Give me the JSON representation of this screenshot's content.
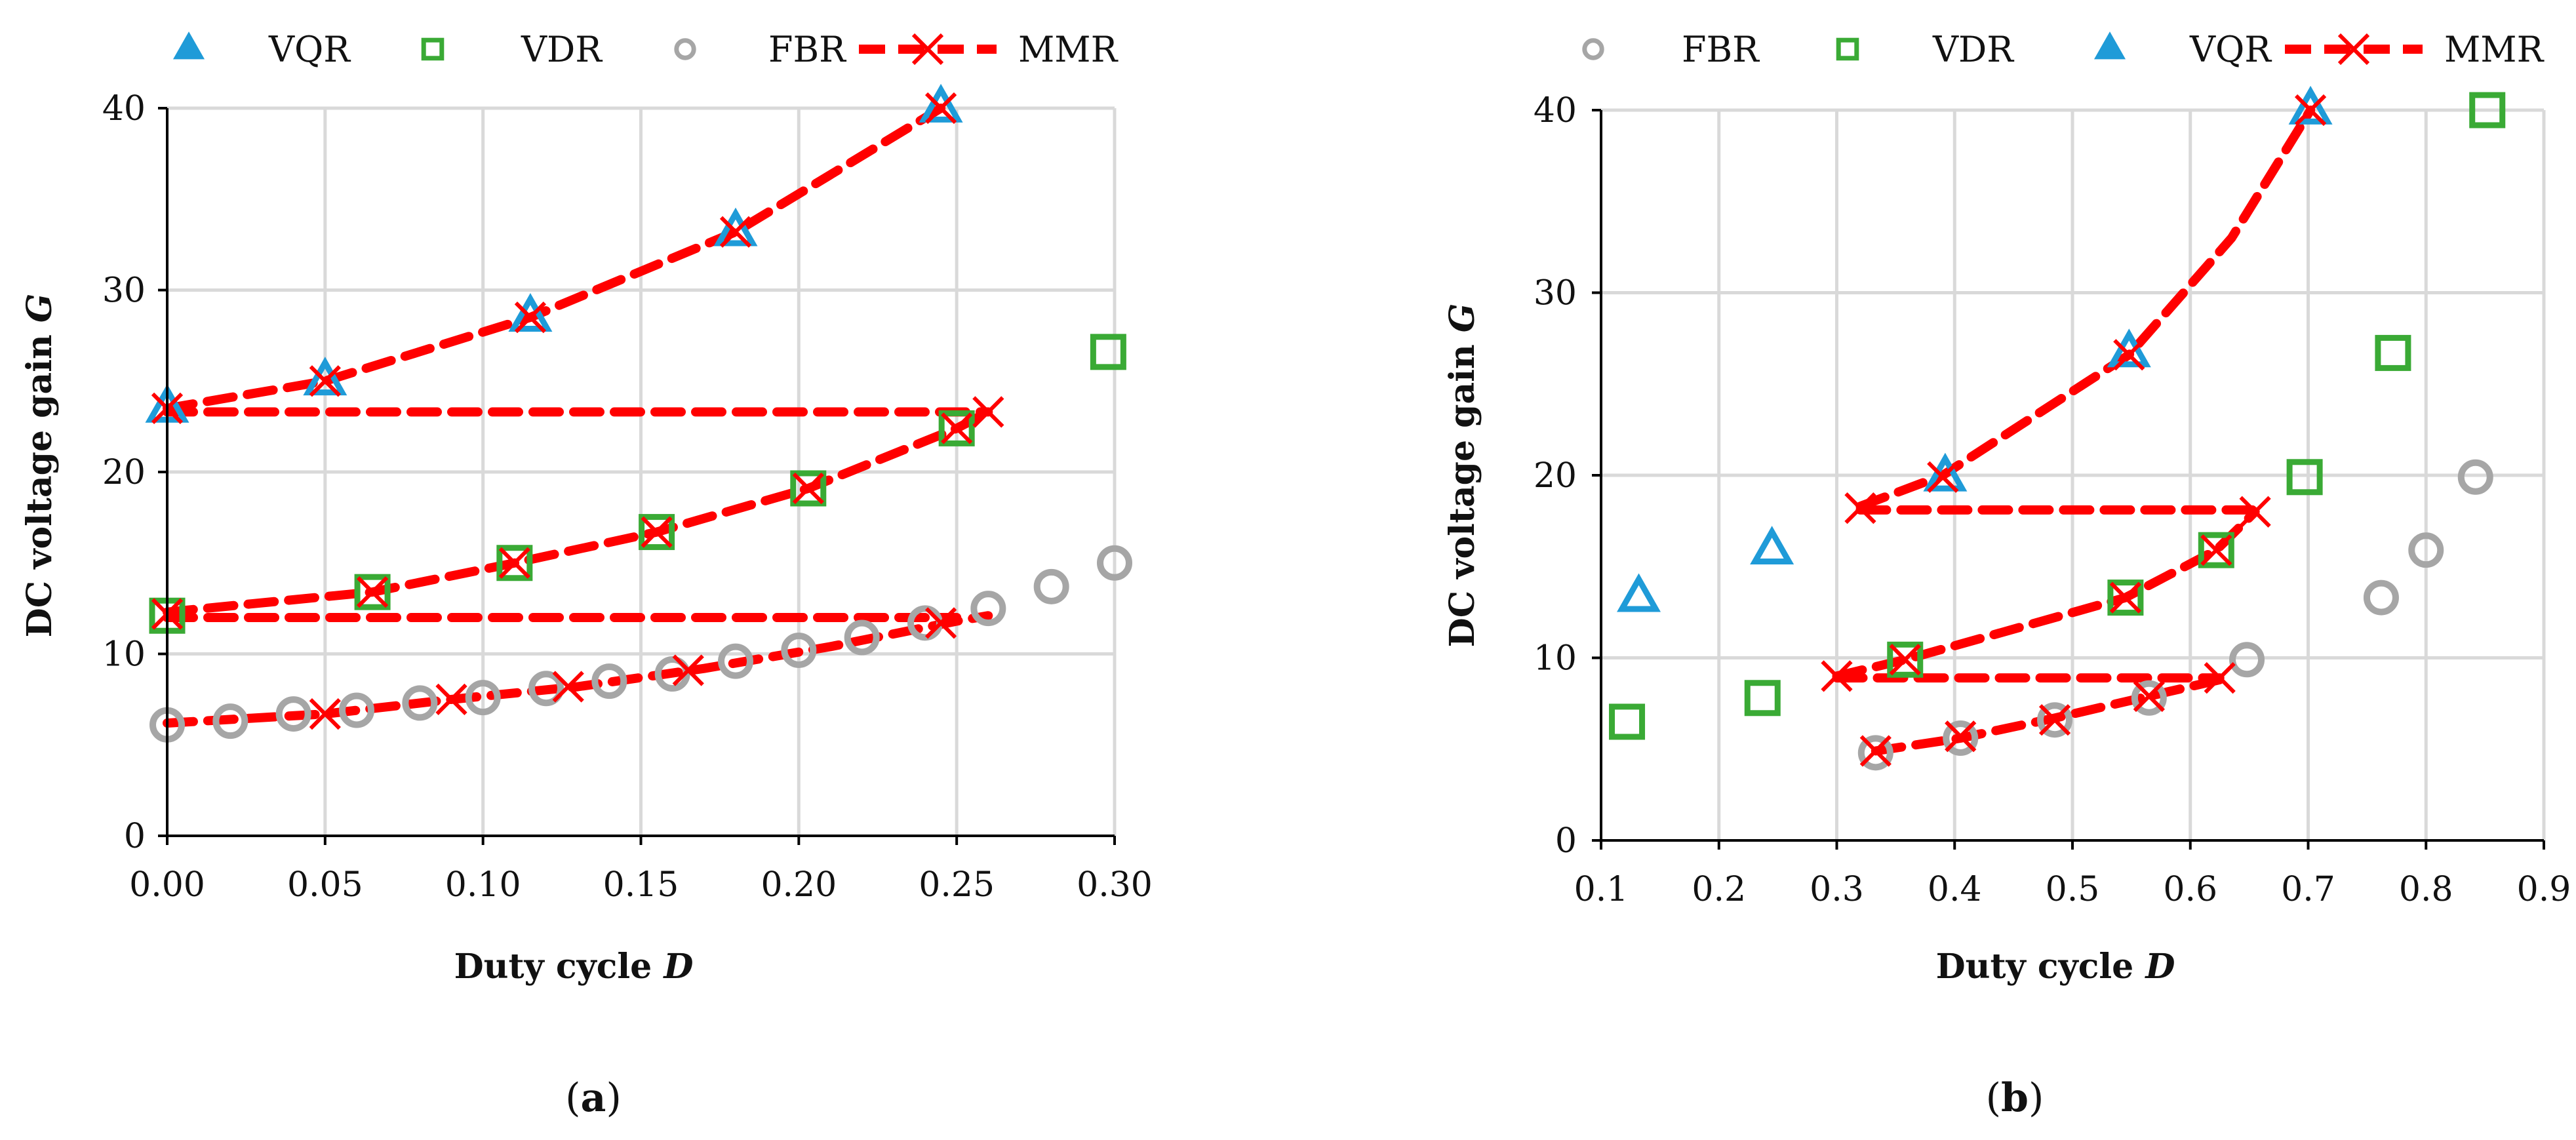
{
  "colors": {
    "VQR": "#1f9bd8",
    "VDR": "#3aaa35",
    "FBR": "#a6a6a6",
    "MMR": "#ff0000",
    "grid": "#d9d9d9",
    "axis": "#000000"
  },
  "chart_data": [
    {
      "type": "scatter",
      "panel_label": "(a)",
      "label_parts": {
        "open": "(",
        "letter": "a",
        "close": ")"
      },
      "xlabel": "Duty cycle",
      "xlabel_symbol": "D",
      "ylabel": "DC voltage gain",
      "ylabel_symbol": "G",
      "xlim": [
        0,
        0.3
      ],
      "ylim": [
        0,
        40
      ],
      "xticks": [
        0,
        0.05,
        0.1,
        0.15,
        0.2,
        0.25,
        0.3
      ],
      "xtick_labels": [
        "0.00",
        "0.05",
        "0.10",
        "0.15",
        "0.20",
        "0.25",
        "0.30"
      ],
      "yticks": [
        0,
        10,
        20,
        30,
        40
      ],
      "ytick_labels": [
        "0",
        "10",
        "20",
        "30",
        "40"
      ],
      "grid": true,
      "legend": [
        "VQR",
        "VDR",
        "FBR",
        "MMR"
      ],
      "legend_placement": "top",
      "series": [
        {
          "name": "VQR",
          "marker": "triangle",
          "x": [
            0.0,
            0.05,
            0.115,
            0.18,
            0.245
          ],
          "y": [
            23.5,
            25.0,
            28.5,
            33.2,
            40.0
          ]
        },
        {
          "name": "VDR",
          "marker": "square",
          "x": [
            0.0,
            0.065,
            0.11,
            0.155,
            0.203,
            0.25,
            0.298
          ],
          "y": [
            12.1,
            13.4,
            15.0,
            16.7,
            19.1,
            22.4,
            26.6
          ]
        },
        {
          "name": "FBR",
          "marker": "circle",
          "x": [
            0.0,
            0.02,
            0.04,
            0.06,
            0.08,
            0.1,
            0.12,
            0.14,
            0.16,
            0.18,
            0.2,
            0.22,
            0.24,
            0.26,
            0.28,
            0.3
          ],
          "y": [
            6.1,
            6.3,
            6.7,
            6.9,
            7.3,
            7.6,
            8.1,
            8.5,
            8.9,
            9.6,
            10.2,
            10.9,
            11.7,
            12.5,
            13.7,
            15.0
          ]
        },
        {
          "name": "MMR",
          "marker": "x",
          "dashed": true,
          "lines": [
            {
              "x": [
                0.0,
                0.05,
                0.115,
                0.18,
                0.245
              ],
              "y": [
                23.5,
                25.0,
                28.5,
                33.2,
                40.0
              ]
            },
            {
              "x": [
                0.0,
                0.26
              ],
              "y": [
                23.3,
                23.3
              ]
            },
            {
              "x": [
                0.0,
                0.065,
                0.11,
                0.155,
                0.203,
                0.25,
                0.26
              ],
              "y": [
                12.3,
                13.4,
                15.0,
                16.7,
                19.1,
                22.4,
                23.3
              ]
            },
            {
              "x": [
                0.0,
                0.25
              ],
              "y": [
                12.0,
                12.0
              ]
            },
            {
              "x": [
                0.0,
                0.05,
                0.09,
                0.13,
                0.17,
                0.21,
                0.25,
                0.26
              ],
              "y": [
                6.2,
                6.7,
                7.5,
                8.2,
                9.2,
                10.4,
                11.8,
                12.1
              ]
            }
          ],
          "markers": {
            "x": [
              0.0,
              0.05,
              0.115,
              0.18,
              0.245,
              0.26,
              0.065,
              0.11,
              0.155,
              0.203,
              0.25,
              0.0,
              0.05,
              0.09,
              0.127,
              0.165,
              0.245
            ],
            "y": [
              23.5,
              25.0,
              28.5,
              33.2,
              40.0,
              23.3,
              13.4,
              15.0,
              16.7,
              19.1,
              22.4,
              12.2,
              6.7,
              7.5,
              8.2,
              9.1,
              11.7
            ]
          }
        }
      ]
    },
    {
      "type": "scatter",
      "panel_label": "(b)",
      "label_parts": {
        "open": "(",
        "letter": "b",
        "close": ")"
      },
      "xlabel": "Duty cycle",
      "xlabel_symbol": "D",
      "ylabel": "DC voltage gain",
      "ylabel_symbol": "G",
      "xlim": [
        0.1,
        0.9
      ],
      "ylim": [
        0,
        40
      ],
      "xticks": [
        0.1,
        0.2,
        0.3,
        0.4,
        0.5,
        0.6,
        0.7,
        0.8,
        0.9
      ],
      "xtick_labels": [
        "0.1",
        "0.2",
        "0.3",
        "0.4",
        "0.5",
        "0.6",
        "0.7",
        "0.8",
        "0.9"
      ],
      "yticks": [
        0,
        10,
        20,
        30,
        40
      ],
      "ytick_labels": [
        "0",
        "10",
        "20",
        "30",
        "40"
      ],
      "grid": true,
      "legend": [
        "FBR",
        "VDR",
        "VQR",
        "MMR"
      ],
      "legend_placement": "top",
      "series": [
        {
          "name": "FBR",
          "marker": "circle",
          "x": [
            0.333,
            0.405,
            0.485,
            0.565,
            0.648,
            0.762,
            0.8,
            0.842
          ],
          "y": [
            4.8,
            5.6,
            6.6,
            7.8,
            9.9,
            13.3,
            15.9,
            19.9
          ]
        },
        {
          "name": "VDR",
          "marker": "square",
          "x": [
            0.122,
            0.237,
            0.358,
            0.545,
            0.622,
            0.697,
            0.772,
            0.852
          ],
          "y": [
            6.5,
            7.8,
            9.9,
            13.3,
            15.9,
            19.9,
            26.7,
            40.0
          ]
        },
        {
          "name": "VQR",
          "marker": "triangle",
          "x": [
            0.132,
            0.245,
            0.392,
            0.548,
            0.702
          ],
          "y": [
            13.3,
            15.9,
            19.9,
            26.7,
            40.0
          ]
        },
        {
          "name": "MMR",
          "marker": "x",
          "dashed": true,
          "lines": [
            {
              "x": [
                0.32,
                0.39,
                0.548,
                0.635,
                0.702
              ],
              "y": [
                18.3,
                20.0,
                26.6,
                33.0,
                40.0
              ]
            },
            {
              "x": [
                0.32,
                0.655
              ],
              "y": [
                18.1,
                18.1
              ]
            },
            {
              "x": [
                0.3,
                0.358,
                0.545,
                0.622,
                0.655
              ],
              "y": [
                9.0,
                9.9,
                13.3,
                15.9,
                18.0
              ]
            },
            {
              "x": [
                0.3,
                0.625
              ],
              "y": [
                8.9,
                8.9
              ]
            },
            {
              "x": [
                0.333,
                0.405,
                0.485,
                0.565,
                0.625
              ],
              "y": [
                4.9,
                5.6,
                6.7,
                7.9,
                8.8
              ]
            }
          ],
          "markers": {
            "x": [
              0.32,
              0.39,
              0.548,
              0.702,
              0.655,
              0.3,
              0.358,
              0.545,
              0.622,
              0.625,
              0.333,
              0.405,
              0.485,
              0.565
            ],
            "y": [
              18.2,
              19.9,
              26.6,
              40.0,
              18.0,
              9.0,
              9.9,
              13.3,
              15.9,
              8.9,
              4.9,
              5.7,
              6.6,
              7.9
            ]
          }
        }
      ]
    }
  ]
}
